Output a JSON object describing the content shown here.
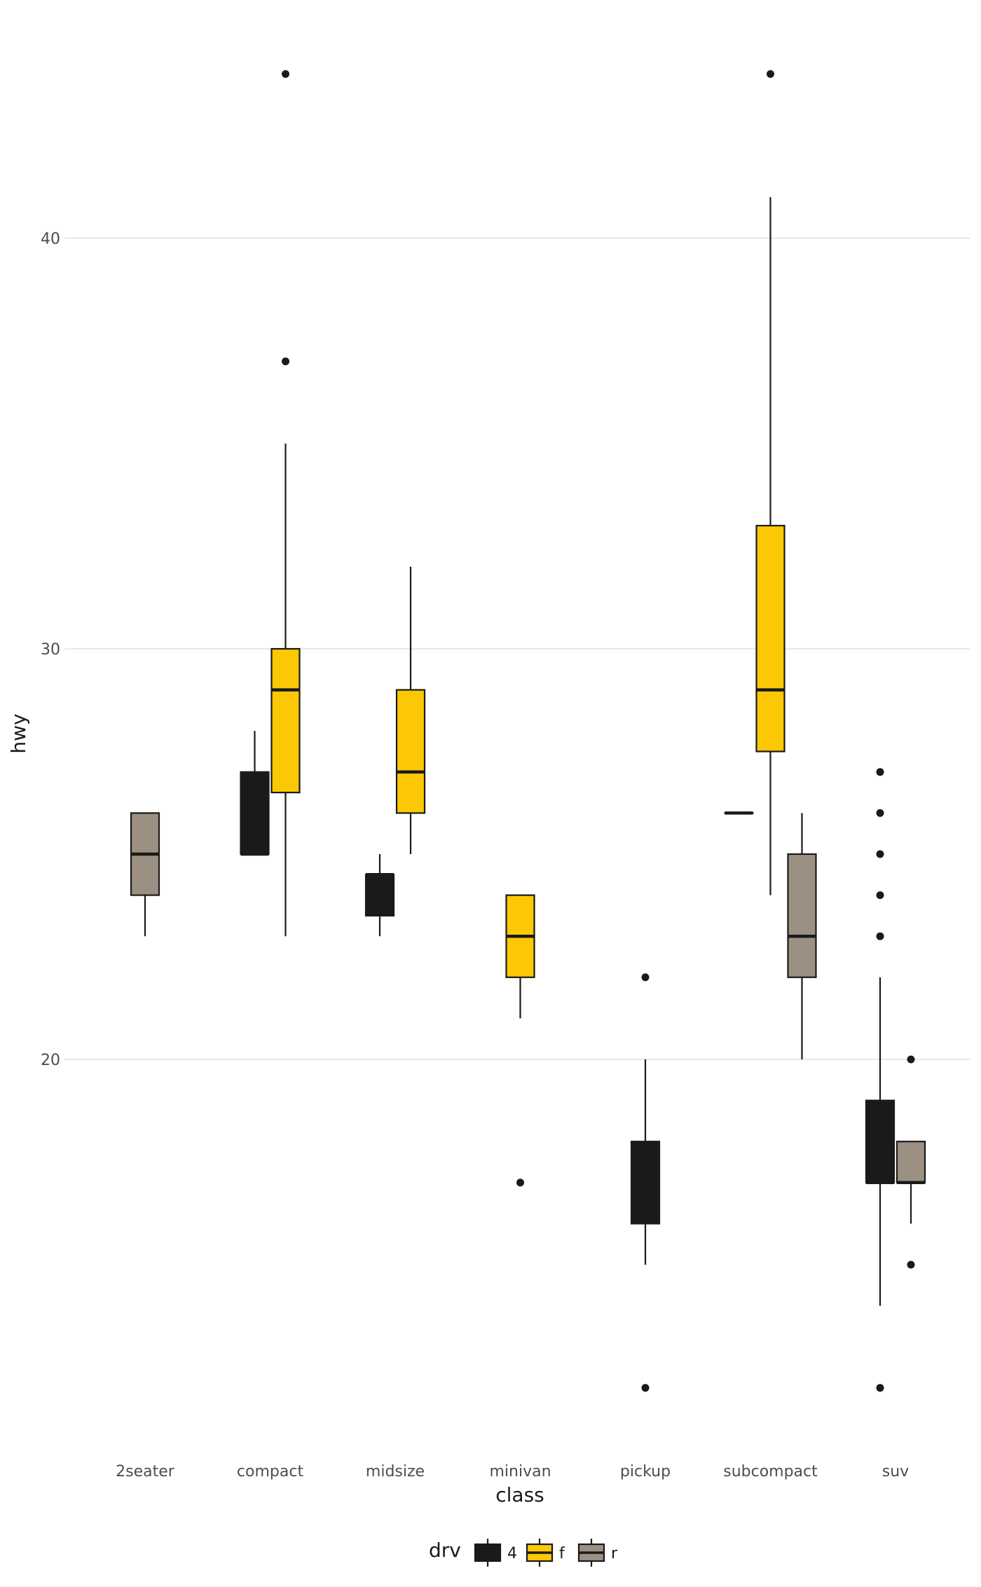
{
  "chart_data": {
    "type": "boxplot",
    "xlabel": "class",
    "ylabel": "hwy",
    "ylim": [
      10.5,
      46
    ],
    "yticks": [
      20,
      30,
      40
    ],
    "grid": true,
    "categories": [
      "2seater",
      "compact",
      "midsize",
      "minivan",
      "pickup",
      "subcompact",
      "suv"
    ],
    "legend": {
      "title": "drv",
      "position": "bottom",
      "entries": [
        {
          "key": "4",
          "label": "4",
          "color": "#1a1a1a"
        },
        {
          "key": "f",
          "label": "f",
          "color": "#fcc805"
        },
        {
          "key": "r",
          "label": "r",
          "color": "#9c9083"
        }
      ]
    },
    "groups": [
      "4",
      "f",
      "r"
    ],
    "boxes": [
      {
        "category": "2seater",
        "drv": "r",
        "slot": 0,
        "slots": 1,
        "whisker_low": 23,
        "q1": 24,
        "median": 25,
        "q3": 26,
        "whisker_high": 26,
        "outliers": []
      },
      {
        "category": "compact",
        "drv": "4",
        "slot": 0,
        "slots": 2,
        "whisker_low": 25,
        "q1": 25,
        "median": 25,
        "q3": 27,
        "whisker_high": 28,
        "outliers": []
      },
      {
        "category": "compact",
        "drv": "f",
        "slot": 1,
        "slots": 2,
        "whisker_low": 23,
        "q1": 26.5,
        "median": 29,
        "q3": 30,
        "whisker_high": 35,
        "outliers": [
          37,
          44
        ]
      },
      {
        "category": "midsize",
        "drv": "4",
        "slot": 0,
        "slots": 2,
        "whisker_low": 23,
        "q1": 23.5,
        "median": 24.5,
        "q3": 24.5,
        "whisker_high": 25,
        "outliers": []
      },
      {
        "category": "midsize",
        "drv": "f",
        "slot": 1,
        "slots": 2,
        "whisker_low": 25,
        "q1": 26,
        "median": 27,
        "q3": 29,
        "whisker_high": 32,
        "outliers": []
      },
      {
        "category": "minivan",
        "drv": "f",
        "slot": 0,
        "slots": 1,
        "whisker_low": 21,
        "q1": 22,
        "median": 23,
        "q3": 24,
        "whisker_high": 24,
        "outliers": [
          17
        ]
      },
      {
        "category": "pickup",
        "drv": "4",
        "slot": 0,
        "slots": 1,
        "whisker_low": 15,
        "q1": 16,
        "median": 17,
        "q3": 18,
        "whisker_high": 20,
        "outliers": [
          22,
          12
        ]
      },
      {
        "category": "subcompact",
        "drv": "4",
        "slot": 0,
        "slots": 3,
        "whisker_low": 26,
        "q1": 26,
        "median": 26,
        "q3": 26,
        "whisker_high": 26,
        "outliers": []
      },
      {
        "category": "subcompact",
        "drv": "f",
        "slot": 1,
        "slots": 3,
        "whisker_low": 24,
        "q1": 27.5,
        "median": 29,
        "q3": 33,
        "whisker_high": 41,
        "outliers": [
          44
        ]
      },
      {
        "category": "subcompact",
        "drv": "r",
        "slot": 2,
        "slots": 3,
        "whisker_low": 20,
        "q1": 22,
        "median": 23,
        "q3": 25,
        "whisker_high": 26,
        "outliers": []
      },
      {
        "category": "suv",
        "drv": "4",
        "slot": 0,
        "slots": 2,
        "whisker_low": 14,
        "q1": 17,
        "median": 17,
        "q3": 19,
        "whisker_high": 22,
        "outliers": [
          27,
          26,
          25,
          24,
          23,
          12
        ]
      },
      {
        "category": "suv",
        "drv": "r",
        "slot": 1,
        "slots": 2,
        "whisker_low": 16,
        "q1": 17,
        "median": 17,
        "q3": 18,
        "whisker_high": 18,
        "outliers": [
          20,
          15
        ]
      }
    ]
  }
}
